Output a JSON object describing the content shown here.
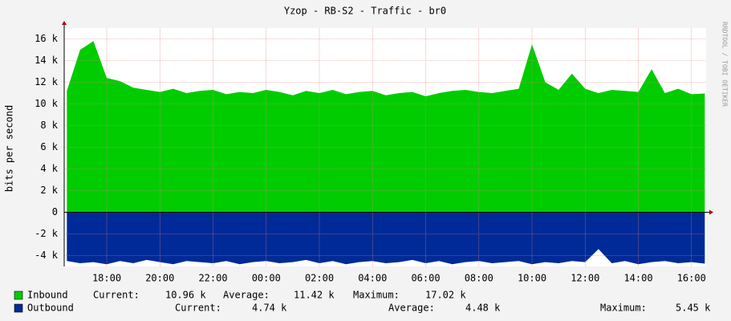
{
  "chart_data": {
    "type": "area",
    "title": "Yzop - RB-S2 - Traffic - br0",
    "y_label": "bits per second",
    "side_text": "RRDTOOL / TOBI OETIKER",
    "x": [
      16.5,
      17,
      17.5,
      18,
      18.5,
      19,
      19.5,
      20,
      20.5,
      21,
      21.5,
      22,
      22.5,
      23,
      23.5,
      24,
      24.5,
      25,
      25.5,
      26,
      26.5,
      27,
      27.5,
      28,
      28.5,
      29,
      29.5,
      30,
      30.5,
      31,
      31.5,
      32,
      32.5,
      33,
      33.5,
      34,
      34.5,
      35,
      35.5,
      36,
      36.5,
      37,
      37.5,
      38,
      38.5,
      39,
      39.5,
      40,
      40.5
    ],
    "xlim": [
      16.4,
      40.55
    ],
    "xticks": [
      {
        "value": 18,
        "label": "18:00"
      },
      {
        "value": 20,
        "label": "20:00"
      },
      {
        "value": 22,
        "label": "22:00"
      },
      {
        "value": 24,
        "label": "00:00"
      },
      {
        "value": 26,
        "label": "02:00"
      },
      {
        "value": 28,
        "label": "04:00"
      },
      {
        "value": 30,
        "label": "06:00"
      },
      {
        "value": 32,
        "label": "08:00"
      },
      {
        "value": 34,
        "label": "10:00"
      },
      {
        "value": 36,
        "label": "12:00"
      },
      {
        "value": 38,
        "label": "14:00"
      },
      {
        "value": 40,
        "label": "16:00"
      }
    ],
    "ylim": [
      -5000,
      17000
    ],
    "yticks": [
      {
        "value": -4000,
        "label": "-4 k"
      },
      {
        "value": -2000,
        "label": "-2 k"
      },
      0,
      {
        "value": 2000,
        "label": "2 k"
      },
      {
        "value": 4000,
        "label": "4 k"
      },
      {
        "value": 6000,
        "label": "6 k"
      },
      {
        "value": 8000,
        "label": "8 k"
      },
      {
        "value": 10000,
        "label": "10 k"
      },
      {
        "value": 12000,
        "label": "12 k"
      },
      {
        "value": 14000,
        "label": "14 k"
      },
      {
        "value": 16000,
        "label": "16 k"
      }
    ],
    "grid": true,
    "stat_labels": [
      "Current:",
      "Average:",
      "Maximum:"
    ],
    "series": [
      {
        "name": "Inbound",
        "color": "#00cc00",
        "stats": [
          "10.96 k",
          "11.42 k",
          "17.02 k"
        ],
        "values": [
          11200,
          15000,
          15800,
          12400,
          12100,
          11500,
          11300,
          11100,
          11400,
          11000,
          11200,
          11300,
          10900,
          11100,
          11000,
          11300,
          11100,
          10800,
          11200,
          11000,
          11300,
          10900,
          11100,
          11200,
          10800,
          11000,
          11100,
          10700,
          11000,
          11200,
          11300,
          11100,
          11000,
          11200,
          11400,
          15500,
          12000,
          11300,
          12800,
          11400,
          11000,
          11300,
          11200,
          11100,
          13200,
          11000,
          11400,
          10900,
          10960
        ]
      },
      {
        "name": "Outbound",
        "color": "#002a97",
        "stats": [
          "4.74 k",
          "4.48 k",
          "5.45 k"
        ],
        "values": [
          -4500,
          -4700,
          -4600,
          -4800,
          -4500,
          -4700,
          -4400,
          -4600,
          -4800,
          -4500,
          -4600,
          -4700,
          -4500,
          -4800,
          -4600,
          -4500,
          -4700,
          -4600,
          -4400,
          -4700,
          -4500,
          -4800,
          -4600,
          -4500,
          -4700,
          -4600,
          -4400,
          -4700,
          -4500,
          -4800,
          -4600,
          -4500,
          -4700,
          -4600,
          -4500,
          -4800,
          -4600,
          -4700,
          -4500,
          -4600,
          -3400,
          -4700,
          -4500,
          -4800,
          -4600,
          -4500,
          -4700,
          -4600,
          -4740
        ]
      }
    ]
  }
}
